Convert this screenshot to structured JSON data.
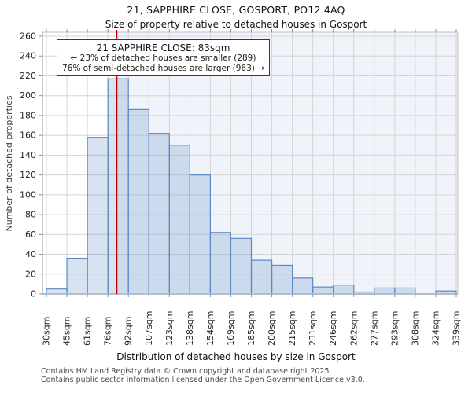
{
  "header": {
    "title": "21, SAPPHIRE CLOSE, GOSPORT, PO12 4AQ",
    "subtitle": "Size of property relative to detached houses in Gosport"
  },
  "annotation": {
    "line1": "21 SAPPHIRE CLOSE: 83sqm",
    "line2": "← 23% of detached houses are smaller (289)",
    "line3": "76% of semi-detached houses are larger (963) →",
    "border_color": "#c00000"
  },
  "chart_data": {
    "type": "bar",
    "subtype": "histogram",
    "categories": [
      "30sqm",
      "45sqm",
      "61sqm",
      "76sqm",
      "92sqm",
      "107sqm",
      "123sqm",
      "138sqm",
      "154sqm",
      "169sqm",
      "185sqm",
      "200sqm",
      "215sqm",
      "231sqm",
      "246sqm",
      "262sqm",
      "277sqm",
      "293sqm",
      "308sqm",
      "324sqm",
      "339sqm"
    ],
    "bin_edges_sqm": [
      30,
      45,
      61,
      76,
      92,
      107,
      123,
      138,
      154,
      169,
      185,
      200,
      215,
      231,
      246,
      262,
      277,
      293,
      308,
      324,
      339
    ],
    "values": [
      5,
      36,
      158,
      217,
      186,
      162,
      150,
      120,
      62,
      56,
      34,
      29,
      16,
      7,
      9,
      2,
      6,
      6,
      0,
      3
    ],
    "marker_sqm": 83,
    "xlabel": "Distribution of detached houses by size in Gosport",
    "ylabel": "Number of detached properties",
    "ylim": [
      0,
      260
    ],
    "yticks": [
      0,
      20,
      40,
      60,
      80,
      100,
      120,
      140,
      160,
      180,
      200,
      220,
      240,
      260
    ],
    "grid": true,
    "legend": "none",
    "colors": {
      "bar_fill": "rgba(91,138,197,0.24)",
      "bar_edge": "#5b8ac5",
      "marker_line": "#c00000",
      "shade_right": "#f0f3fa",
      "grid": "#d4d4d4",
      "frame": "#c2c2c2",
      "bottom_spine": "#b7bdc6",
      "left_spine": "#999999",
      "tick_bottom": "#7696c2",
      "tick_gray": "#8c8c8c",
      "tick_label": "#262626",
      "axis_title": "#111111",
      "ylabel_color": "#3d3d3d"
    }
  },
  "footer": {
    "line1": "Contains HM Land Registry data © Crown copyright and database right 2025.",
    "line2": "Contains public sector information licensed under the Open Government Licence v3.0."
  }
}
